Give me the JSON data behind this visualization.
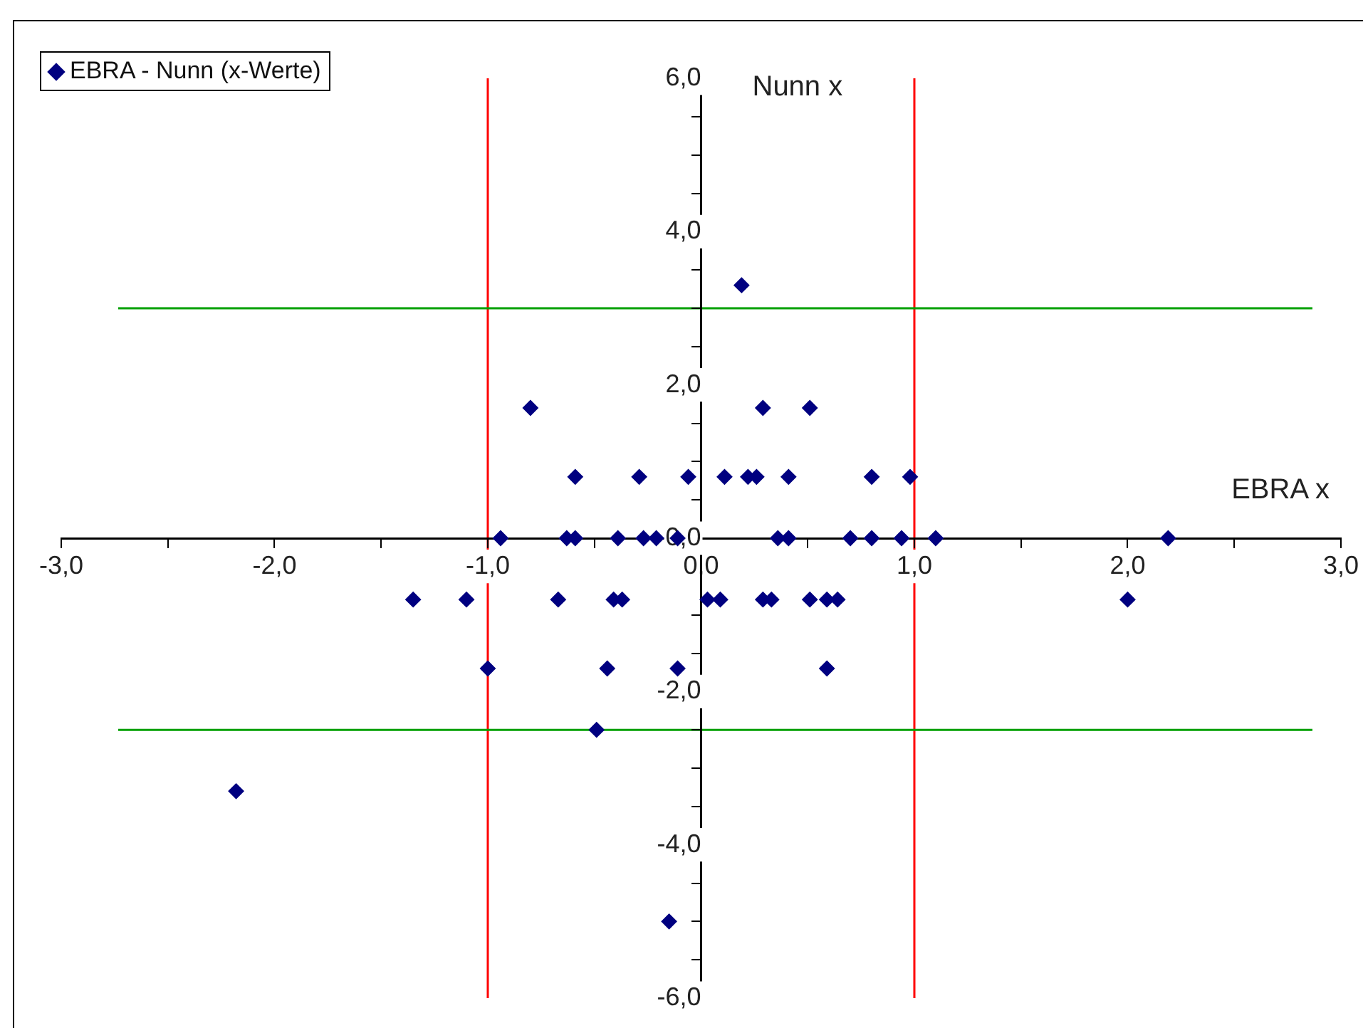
{
  "chart_data": {
    "type": "scatter",
    "xlabel": "EBRA x",
    "ylabel": "Nunn x",
    "legend": "top left",
    "marker": "diamond",
    "grid": false,
    "xlim": [
      -3,
      3
    ],
    "ylim": [
      -6,
      6
    ],
    "xticks": [
      {
        "value": -3,
        "label": "-3,0"
      },
      {
        "value": -2.5,
        "label": null
      },
      {
        "value": -2,
        "label": "-2,0"
      },
      {
        "value": -1.5,
        "label": null
      },
      {
        "value": -1,
        "label": "-1,0"
      },
      {
        "value": -0.5,
        "label": null
      },
      {
        "value": 0,
        "label": "0,0"
      },
      {
        "value": 0.5,
        "label": null
      },
      {
        "value": 1,
        "label": "1,0"
      },
      {
        "value": 1.5,
        "label": null
      },
      {
        "value": 2,
        "label": "2,0"
      },
      {
        "value": 2.5,
        "label": null
      },
      {
        "value": 3,
        "label": "3,0"
      }
    ],
    "yticks": [
      {
        "value": -6,
        "label": "-6,0"
      },
      {
        "value": -5.5,
        "label": null
      },
      {
        "value": -5,
        "label": null
      },
      {
        "value": -4.5,
        "label": null
      },
      {
        "value": -4,
        "label": "-4,0"
      },
      {
        "value": -3.5,
        "label": null
      },
      {
        "value": -3,
        "label": null
      },
      {
        "value": -2.5,
        "label": null
      },
      {
        "value": -2,
        "label": "-2,0"
      },
      {
        "value": -1.5,
        "label": null
      },
      {
        "value": -1,
        "label": null
      },
      {
        "value": -0.5,
        "label": null
      },
      {
        "value": 0,
        "label": "0,0"
      },
      {
        "value": 0.5,
        "label": null
      },
      {
        "value": 1,
        "label": null
      },
      {
        "value": 1.5,
        "label": null
      },
      {
        "value": 2,
        "label": "2,0"
      },
      {
        "value": 2.5,
        "label": null
      },
      {
        "value": 3,
        "label": null
      },
      {
        "value": 3.5,
        "label": null
      },
      {
        "value": 4,
        "label": "4,0"
      },
      {
        "value": 4.5,
        "label": null
      },
      {
        "value": 5,
        "label": null
      },
      {
        "value": 5.5,
        "label": null
      },
      {
        "value": 6,
        "label": "6,0"
      }
    ],
    "ref_lines": [
      {
        "axis": "x",
        "value": -1,
        "color": "#ff0000"
      },
      {
        "axis": "x",
        "value": 1,
        "color": "#ff0000"
      },
      {
        "axis": "y",
        "value": 3,
        "color": "#00a000"
      },
      {
        "axis": "y",
        "value": -2.5,
        "color": "#00a000"
      }
    ],
    "series": [
      {
        "name": "EBRA - Nunn (x-Werte)",
        "color": "#000080",
        "x": [
          0.19,
          -0.8,
          0.29,
          0.51,
          -0.59,
          -0.29,
          -0.06,
          0.11,
          0.22,
          0.26,
          0.41,
          0.8,
          0.98,
          -0.94,
          -0.63,
          -0.59,
          -0.39,
          -0.27,
          -0.21,
          -0.11,
          0.36,
          0.41,
          0.7,
          0.8,
          0.94,
          1.1,
          2.19,
          -1.35,
          -1.1,
          -0.67,
          -0.41,
          -0.37,
          0.03,
          0.09,
          0.29,
          0.33,
          0.51,
          0.59,
          0.64,
          2.0,
          -1.0,
          -0.44,
          -0.11,
          0.59,
          -0.49,
          -2.18,
          -0.15
        ],
        "values": [
          3.3,
          1.7,
          1.7,
          1.7,
          0.8,
          0.8,
          0.8,
          0.8,
          0.8,
          0.8,
          0.8,
          0.8,
          0.8,
          0,
          0,
          0,
          0,
          0,
          0,
          0,
          0,
          0,
          0,
          0,
          0,
          0,
          0,
          -0.8,
          -0.8,
          -0.8,
          -0.8,
          -0.8,
          -0.8,
          -0.8,
          -0.8,
          -0.8,
          -0.8,
          -0.8,
          -0.8,
          -0.8,
          -1.7,
          -1.7,
          -1.7,
          -1.7,
          -2.5,
          -3.3,
          -5.0
        ]
      }
    ]
  }
}
